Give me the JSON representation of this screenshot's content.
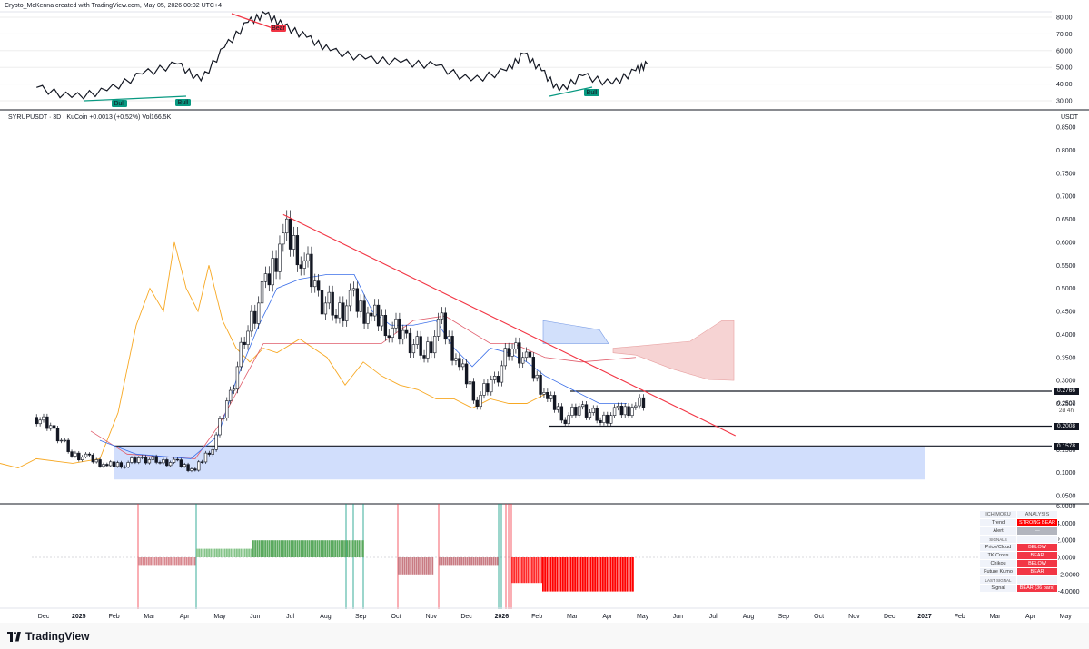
{
  "header": {
    "credit": "Crypto_McKenna created with TradingView.com, May 05, 2026 00:02 UTC+4",
    "symbol_line": "SYRUPUSDT · 3D · KuCoin  +0.0013 (+0.52%)  Vol166.5K",
    "unit": "USDT"
  },
  "rsi": {
    "ticks": [
      "80.00",
      "70.00",
      "60.00",
      "50.00",
      "40.00",
      "30.00"
    ],
    "tick_values": [
      80,
      70,
      60,
      50,
      40,
      30
    ],
    "divergence_labels": [
      {
        "text": "Bull",
        "color": "#089981"
      },
      {
        "text": "Bull",
        "color": "#089981"
      },
      {
        "text": "Bear",
        "color": "#f23645"
      },
      {
        "text": "Bull",
        "color": "#089981"
      }
    ]
  },
  "price_axis": {
    "ticks": [
      "0.8500",
      "0.8000",
      "0.7500",
      "0.7000",
      "0.6500",
      "0.6000",
      "0.5500",
      "0.5000",
      "0.4500",
      "0.4000",
      "0.3500",
      "0.3000",
      "0.2500",
      "0.1500",
      "0.1000",
      "0.0500"
    ],
    "tick_values": [
      0.85,
      0.8,
      0.75,
      0.7,
      0.65,
      0.6,
      0.55,
      0.5,
      0.45,
      0.4,
      0.35,
      0.3,
      0.25,
      0.15,
      0.1,
      0.05
    ],
    "current_price": "0.2507",
    "countdown": "2d 4h",
    "level_labels": [
      "0.2766",
      "0.2008",
      "0.1578"
    ],
    "level_values": [
      0.2766,
      0.2008,
      0.1578
    ]
  },
  "osc_axis": {
    "ticks": [
      "6.0000",
      "4.0000",
      "2.0000",
      "0.0000",
      "−2.0000",
      "−4.0000"
    ],
    "tick_values": [
      6,
      4,
      2,
      0,
      -2,
      -4
    ]
  },
  "time_axis": {
    "labels": [
      "Dec",
      "2025",
      "Feb",
      "Mar",
      "Apr",
      "May",
      "Jun",
      "Jul",
      "Aug",
      "Sep",
      "Oct",
      "Nov",
      "Dec",
      "2026",
      "Feb",
      "Mar",
      "Apr",
      "May",
      "Jun",
      "Jul",
      "Aug",
      "Sep",
      "Oct",
      "Nov",
      "Dec",
      "2027",
      "Feb",
      "Mar",
      "Apr",
      "May"
    ]
  },
  "chart_data": {
    "type": "candlestick",
    "title": "",
    "symbol": "SYRUPUSDT",
    "timeframe": "3D",
    "exchange": "KuCoin",
    "change": "+0.0013 (+0.52%)",
    "volume": "166.5K",
    "ylim": [
      0.03,
      0.87
    ],
    "horizontal_levels": [
      0.2766,
      0.2008,
      0.1578
    ],
    "support_zone": [
      0.085,
      0.1578
    ],
    "trendline": {
      "from": [
        "2025-06-25",
        0.66
      ],
      "to": [
        "2026-07-20",
        0.18
      ]
    },
    "close_series": [
      [
        "2024-11-25",
        0.22
      ],
      [
        "2024-12-10",
        0.19
      ],
      [
        "2024-12-25",
        0.14
      ],
      [
        "2025-01-10",
        0.13
      ],
      [
        "2025-01-25",
        0.115
      ],
      [
        "2025-02-10",
        0.12
      ],
      [
        "2025-02-25",
        0.13
      ],
      [
        "2025-03-10",
        0.125
      ],
      [
        "2025-03-25",
        0.12
      ],
      [
        "2025-04-10",
        0.105
      ],
      [
        "2025-04-25",
        0.16
      ],
      [
        "2025-05-10",
        0.27
      ],
      [
        "2025-05-25",
        0.42
      ],
      [
        "2025-06-10",
        0.5
      ],
      [
        "2025-06-25",
        0.62
      ],
      [
        "2025-07-10",
        0.58
      ],
      [
        "2025-07-25",
        0.48
      ],
      [
        "2025-08-10",
        0.45
      ],
      [
        "2025-08-25",
        0.47
      ],
      [
        "2025-09-10",
        0.44
      ],
      [
        "2025-09-25",
        0.42
      ],
      [
        "2025-10-10",
        0.39
      ],
      [
        "2025-10-25",
        0.36
      ],
      [
        "2025-11-10",
        0.42
      ],
      [
        "2025-11-25",
        0.33
      ],
      [
        "2025-12-10",
        0.26
      ],
      [
        "2025-12-25",
        0.3
      ],
      [
        "2026-01-10",
        0.38
      ],
      [
        "2026-01-25",
        0.33
      ],
      [
        "2026-02-10",
        0.26
      ],
      [
        "2026-02-25",
        0.22
      ],
      [
        "2026-03-10",
        0.24
      ],
      [
        "2026-03-25",
        0.215
      ],
      [
        "2026-04-10",
        0.23
      ],
      [
        "2026-04-25",
        0.245
      ],
      [
        "2026-05-05",
        0.2507
      ]
    ],
    "rsi_series": [
      [
        "2024-11-25",
        38
      ],
      [
        "2024-12-25",
        32
      ],
      [
        "2025-01-25",
        36
      ],
      [
        "2025-02-25",
        46
      ],
      [
        "2025-03-25",
        52
      ],
      [
        "2025-04-15",
        42
      ],
      [
        "2025-05-05",
        62
      ],
      [
        "2025-05-25",
        77
      ],
      [
        "2025-06-10",
        82
      ],
      [
        "2025-06-25",
        75
      ],
      [
        "2025-07-15",
        68
      ],
      [
        "2025-08-05",
        60
      ],
      [
        "2025-09-05",
        55
      ],
      [
        "2025-10-05",
        53
      ],
      [
        "2025-11-05",
        51
      ],
      [
        "2025-12-05",
        42
      ],
      [
        "2026-01-05",
        48
      ],
      [
        "2026-01-20",
        58
      ],
      [
        "2026-02-05",
        48
      ],
      [
        "2026-02-20",
        36
      ],
      [
        "2026-03-10",
        45
      ],
      [
        "2026-04-05",
        40
      ],
      [
        "2026-04-25",
        48
      ],
      [
        "2026-05-05",
        52
      ]
    ],
    "ichimoku_table": {
      "headers": [
        "ICHIMOKU",
        "ANALYSIS"
      ],
      "rows": [
        {
          "label": "Trend",
          "value": "STRONG BEAR"
        },
        {
          "label": "Alert",
          "value": "—"
        },
        {
          "label": "SIGNALS",
          "value": ""
        },
        {
          "label": "Price/Cloud",
          "value": "BELOW"
        },
        {
          "label": "TK Cross",
          "value": "BEAR"
        },
        {
          "label": "Chikou",
          "value": "BELOW"
        },
        {
          "label": "Future Kumo",
          "value": "BEAR"
        },
        {
          "label": "LAST SIGNAL",
          "value": ""
        },
        {
          "label": "Signal",
          "value": "BEAR (36 bars)"
        }
      ]
    }
  },
  "brand": {
    "name": "TradingView"
  }
}
